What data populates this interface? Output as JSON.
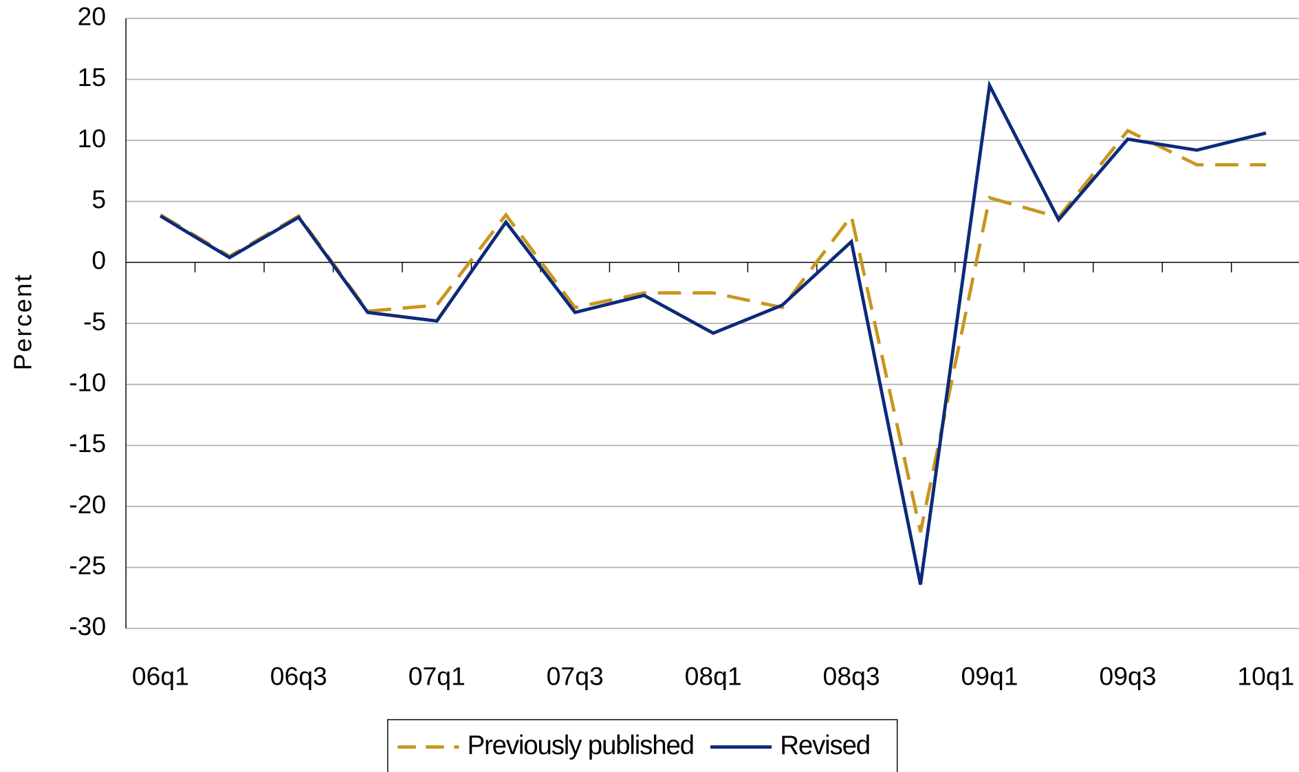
{
  "chart_data": {
    "type": "line",
    "y_label": "Percent",
    "categories": [
      "06q1",
      null,
      "06q3",
      null,
      "07q1",
      null,
      "07q3",
      null,
      "08q1",
      null,
      "08q3",
      null,
      "09q1",
      null,
      "09q3",
      null,
      "10q1"
    ],
    "series": [
      {
        "name": "Previously published",
        "color": "#c8961e",
        "dashed": true,
        "values": [
          3.9,
          0.5,
          3.8,
          -4.0,
          -3.5,
          3.9,
          -3.7,
          -2.5,
          -2.5,
          -3.7,
          3.8,
          -22.1,
          5.3,
          3.7,
          10.8,
          8.0,
          8.0
        ]
      },
      {
        "name": "Revised",
        "color": "#0d2a7a",
        "dashed": false,
        "values": [
          3.8,
          0.4,
          3.7,
          -4.1,
          -4.8,
          3.3,
          -4.1,
          -2.7,
          -5.8,
          -3.5,
          1.7,
          -26.4,
          14.5,
          3.5,
          10.1,
          9.2,
          10.6
        ]
      }
    ],
    "ylim": [
      -30,
      20
    ],
    "yticks": [
      -30,
      -25,
      -20,
      -15,
      -10,
      -5,
      0,
      5,
      10,
      15,
      20
    ],
    "grid": true,
    "legend": "bottom"
  }
}
